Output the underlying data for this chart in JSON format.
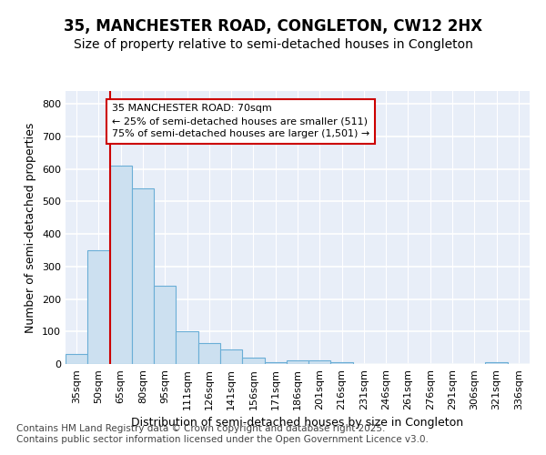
{
  "title": "35, MANCHESTER ROAD, CONGLETON, CW12 2HX",
  "subtitle": "Size of property relative to semi-detached houses in Congleton",
  "xlabel": "Distribution of semi-detached houses by size in Congleton",
  "ylabel": "Number of semi-detached properties",
  "categories": [
    "35sqm",
    "50sqm",
    "65sqm",
    "80sqm",
    "95sqm",
    "111sqm",
    "126sqm",
    "141sqm",
    "156sqm",
    "171sqm",
    "186sqm",
    "201sqm",
    "216sqm",
    "231sqm",
    "246sqm",
    "261sqm",
    "276sqm",
    "291sqm",
    "306sqm",
    "321sqm",
    "336sqm"
  ],
  "values": [
    30,
    350,
    610,
    540,
    240,
    100,
    65,
    45,
    20,
    5,
    10,
    10,
    5,
    0,
    0,
    0,
    0,
    0,
    0,
    5,
    0
  ],
  "bar_color": "#cce0f0",
  "bar_edge_color": "#6aaed6",
  "marker_line_color": "#cc0000",
  "annotation_text": "35 MANCHESTER ROAD: 70sqm\n← 25% of semi-detached houses are smaller (511)\n75% of semi-detached houses are larger (1,501) →",
  "annotation_box_color": "#ffffff",
  "annotation_box_edge": "#cc0000",
  "ylim": [
    0,
    840
  ],
  "yticks": [
    0,
    100,
    200,
    300,
    400,
    500,
    600,
    700,
    800
  ],
  "bg_color": "#e8eef8",
  "footer": "Contains HM Land Registry data © Crown copyright and database right 2025.\nContains public sector information licensed under the Open Government Licence v3.0.",
  "title_fontsize": 12,
  "subtitle_fontsize": 10,
  "axis_label_fontsize": 9,
  "tick_fontsize": 8,
  "footer_fontsize": 7.5
}
